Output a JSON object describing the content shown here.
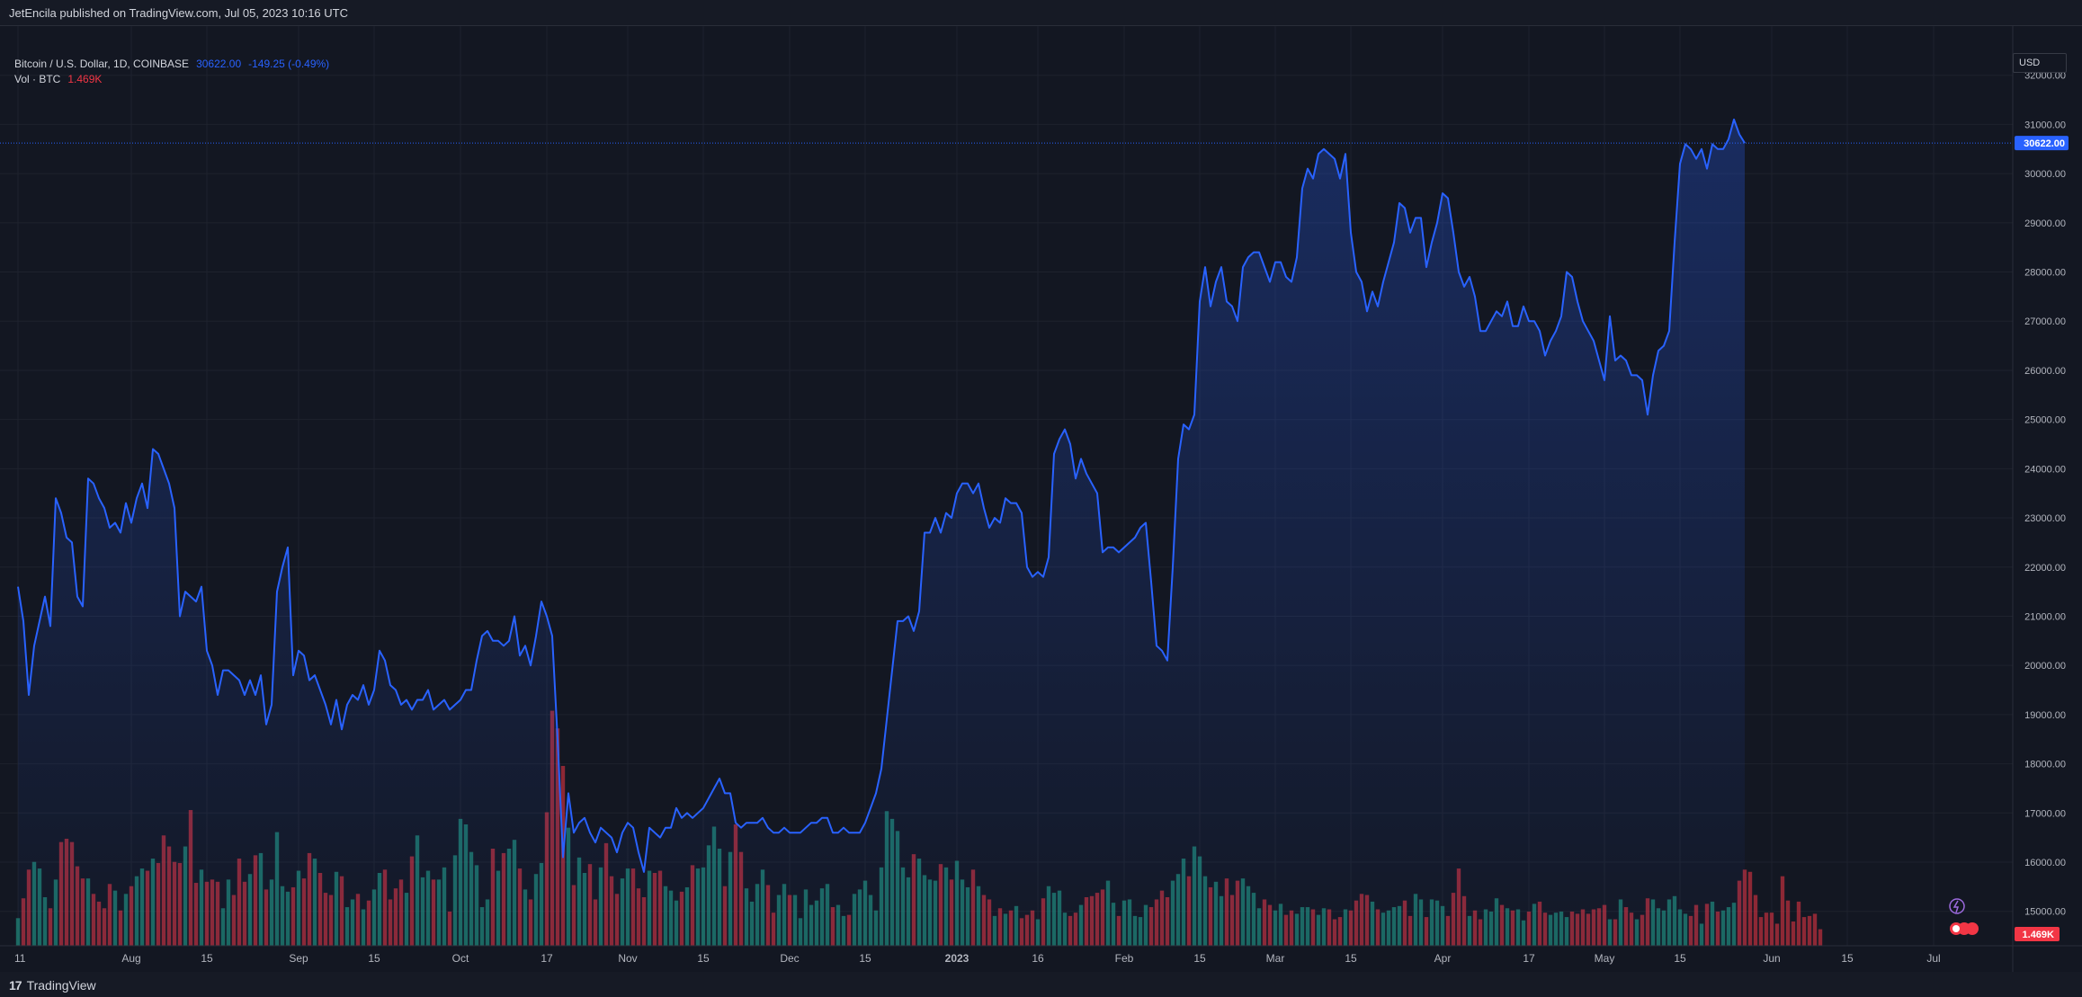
{
  "header": {
    "published_text": "JetEncila published on TradingView.com, Jul 05, 2023 10:16 UTC"
  },
  "legend": {
    "symbol_text": "Bitcoin / U.S. Dollar, 1D, COINBASE",
    "last_price": "30622.00",
    "change": "-149.25 (-0.49%)",
    "volume_label": "Vol · BTC",
    "volume_value": "1.469K"
  },
  "axis": {
    "currency": "USD",
    "last_price_tag": "30622.00",
    "volume_tag": "1.469K"
  },
  "footer": {
    "brand": "TradingView",
    "brand_mark": "17"
  },
  "colors": {
    "line": "#2962ff",
    "up_volume": "#22ab94",
    "down_volume": "#f23645",
    "background": "#131722",
    "grid": "#1e222d"
  },
  "chart_data": {
    "type": "area",
    "title": "Bitcoin / U.S. Dollar, 1D, COINBASE",
    "y_ticks": [
      "15000.00",
      "16000.00",
      "17000.00",
      "18000.00",
      "19000.00",
      "20000.00",
      "21000.00",
      "22000.00",
      "23000.00",
      "24000.00",
      "25000.00",
      "26000.00",
      "27000.00",
      "28000.00",
      "29000.00",
      "30000.00",
      "31000.00",
      "32000.00"
    ],
    "ylim": [
      14300,
      33000
    ],
    "x_ticks": [
      "11",
      "Aug",
      "15",
      "Sep",
      "15",
      "Oct",
      "17",
      "Nov",
      "15",
      "Dec",
      "15",
      "2023",
      "16",
      "Feb",
      "15",
      "Mar",
      "15",
      "Apr",
      "17",
      "May",
      "15",
      "Jun",
      "15",
      "Jul"
    ],
    "x_tick_days": [
      0,
      21,
      35,
      52,
      66,
      82,
      98,
      113,
      127,
      143,
      157,
      174,
      189,
      205,
      219,
      233,
      247,
      264,
      280,
      294,
      308,
      325,
      339,
      355
    ],
    "series": [
      {
        "name": "Bitcoin / U.S. Dollar",
        "start_date": "2022-07-11",
        "values": [
          21600,
          20900,
          19400,
          20400,
          20900,
          21400,
          20800,
          23400,
          23100,
          22600,
          22500,
          21400,
          21200,
          23800,
          23700,
          23400,
          23200,
          22800,
          22900,
          22700,
          23300,
          22900,
          23400,
          23700,
          23200,
          24400,
          24300,
          24000,
          23700,
          23200,
          21000,
          21500,
          21400,
          21300,
          21600,
          20300,
          20000,
          19400,
          19900,
          19900,
          19800,
          19700,
          19400,
          19700,
          19400,
          19800,
          18800,
          19200,
          21500,
          22000,
          22400,
          19800,
          20300,
          20200,
          19700,
          19800,
          19500,
          19200,
          18800,
          19300,
          18700,
          19200,
          19400,
          19300,
          19600,
          19200,
          19500,
          20300,
          20100,
          19600,
          19500,
          19200,
          19300,
          19100,
          19300,
          19300,
          19500,
          19100,
          19200,
          19300,
          19100,
          19200,
          19300,
          19500,
          19500,
          20100,
          20600,
          20700,
          20500,
          20500,
          20400,
          20500,
          21000,
          20200,
          20400,
          20000,
          20600,
          21300,
          21000,
          20600,
          18500,
          16100,
          17400,
          16600,
          16800,
          16900,
          16600,
          16400,
          16700,
          16600,
          16500,
          16200,
          16600,
          16800,
          16700,
          16200,
          15800,
          16700,
          16600,
          16500,
          16700,
          16700,
          17100,
          16900,
          17000,
          16900,
          17000,
          17100,
          17300,
          17500,
          17700,
          17400,
          17400,
          16800,
          16700,
          16800,
          16800,
          16800,
          16900,
          16700,
          16600,
          16600,
          16700,
          16600,
          16600,
          16600,
          16700,
          16800,
          16800,
          16900,
          16900,
          16600,
          16600,
          16700,
          16600,
          16600,
          16600,
          16800,
          17100,
          17400,
          17900,
          18900,
          19900,
          20900,
          20900,
          21000,
          20700,
          21100,
          22700,
          22700,
          23000,
          22700,
          23100,
          23000,
          23500,
          23700,
          23700,
          23500,
          23700,
          23200,
          22800,
          23000,
          22900,
          23400,
          23300,
          23300,
          23100,
          22000,
          21800,
          21900,
          21800,
          22200,
          24300,
          24600,
          24800,
          24500,
          23800,
          24200,
          23900,
          23700,
          23500,
          22300,
          22400,
          22400,
          22300,
          22400,
          22500,
          22600,
          22800,
          22900,
          21700,
          20400,
          20300,
          20100,
          22000,
          24200,
          24900,
          24800,
          25100,
          27400,
          28100,
          27300,
          27800,
          28100,
          27400,
          27300,
          27000,
          28100,
          28300,
          28400,
          28400,
          28100,
          27800,
          28200,
          28200,
          27900,
          27800,
          28300,
          29700,
          30100,
          29900,
          30400,
          30500,
          30400,
          30300,
          29900,
          30400,
          28800,
          28000,
          27800,
          27200,
          27600,
          27300,
          27800,
          28200,
          28600,
          29400,
          29300,
          28800,
          29100,
          29100,
          28100,
          28600,
          29000,
          29600,
          29500,
          28800,
          28000,
          27700,
          27900,
          27500,
          26800,
          26800,
          27000,
          27200,
          27100,
          27400,
          26900,
          26900,
          27300,
          27000,
          27000,
          26800,
          26300,
          26600,
          26800,
          27100,
          28000,
          27900,
          27400,
          27000,
          26800,
          26600,
          26200,
          25800,
          27100,
          26200,
          26300,
          26200,
          25900,
          25900,
          25800,
          25100,
          25900,
          26400,
          26500,
          26800,
          28600,
          30200,
          30600,
          30500,
          30300,
          30500,
          30100,
          30600,
          30500,
          30500,
          30700,
          31100,
          30800,
          30622
        ]
      },
      {
        "name": "Vol · BTC",
        "values": [
          2.5,
          4.3,
          6.9,
          7.6,
          7.0,
          4.4,
          3.4,
          6.0,
          9.4,
          9.7,
          9.4,
          7.2,
          6.1,
          6.1,
          4.7,
          4.0,
          3.4,
          5.6,
          5.0,
          3.2,
          4.7,
          5.4,
          6.3,
          7.0,
          6.8,
          7.9,
          7.5,
          10.0,
          9.0,
          7.6,
          7.5,
          9.0,
          12.3,
          5.7,
          6.9,
          5.8,
          6.0,
          5.8,
          3.4,
          6.0,
          4.6,
          7.9,
          5.8,
          6.5,
          8.2,
          8.4,
          5.1,
          6.0,
          10.3,
          5.4,
          4.9,
          5.3,
          6.8,
          6.1,
          8.4,
          7.9,
          6.6,
          4.8,
          4.6,
          6.7,
          6.3,
          3.5,
          4.2,
          4.7,
          3.3,
          4.1,
          5.1,
          6.6,
          6.9,
          4.2,
          5.2,
          6.0,
          4.8,
          8.1,
          10.0,
          6.2,
          6.8,
          6.0,
          6.0,
          7.1,
          3.1,
          8.2,
          11.5,
          11.0,
          8.5,
          7.3,
          3.5,
          4.2,
          8.8,
          6.8,
          8.4,
          8.8,
          9.6,
          7.0,
          5.1,
          4.2,
          6.5,
          7.5,
          12.1,
          21.3,
          19.7,
          16.3,
          10.7,
          5.5,
          8.0,
          6.6,
          7.4,
          4.2,
          7.1,
          9.3,
          6.3,
          4.7,
          6.1,
          7.0,
          7.0,
          5.2,
          4.4,
          6.8,
          6.6,
          6.8,
          5.4,
          5.0,
          4.1,
          4.9,
          5.3,
          7.3,
          7.0,
          7.1,
          9.1,
          10.8,
          8.8,
          5.4,
          8.5,
          11.0,
          8.5,
          5.2,
          4.0,
          5.6,
          6.9,
          5.5,
          3.0,
          4.6,
          5.6,
          4.6,
          4.6,
          2.5,
          5.1,
          3.7,
          4.1,
          5.2,
          5.6,
          3.5,
          3.7,
          2.7,
          2.8,
          4.7,
          5.1,
          5.9,
          4.6,
          3.2,
          7.1,
          12.2,
          11.5,
          10.4,
          7.1,
          6.2,
          8.3,
          7.9,
          6.4,
          6.0,
          5.9,
          7.4,
          7.1,
          6.0,
          7.7,
          6.0,
          5.3,
          6.9,
          5.4,
          4.6,
          4.2,
          2.7,
          3.4,
          2.9,
          3.2,
          3.6,
          2.5,
          2.8,
          3.2,
          2.4,
          4.3,
          5.4,
          4.8,
          5.0,
          3.0,
          2.7,
          3.0,
          3.7,
          4.4,
          4.5,
          4.8,
          5.1,
          5.9,
          3.9,
          2.7,
          4.1,
          4.2,
          2.7,
          2.6,
          3.7,
          3.5,
          4.2,
          5.0,
          4.4,
          5.9,
          6.5,
          7.9,
          6.3,
          9.0,
          8.1,
          6.3,
          5.3,
          5.8,
          4.5,
          6.1,
          4.6,
          5.9,
          6.1,
          5.4,
          4.8,
          3.4,
          4.2,
          3.7,
          3.2,
          3.8,
          2.8,
          3.2,
          2.9,
          3.5,
          3.5,
          3.3,
          2.8,
          3.4,
          3.3,
          2.4,
          2.6,
          3.3,
          3.2,
          4.1,
          4.7,
          4.6,
          4.0,
          3.3,
          3.0,
          3.2,
          3.5,
          3.6,
          4.1,
          2.7,
          4.7,
          4.2,
          2.6,
          4.2,
          4.1,
          3.6,
          2.7,
          4.8,
          7.0,
          4.5,
          2.7,
          3.2,
          2.4,
          3.3,
          3.1,
          4.3,
          3.7,
          3.4,
          3.2,
          3.3,
          2.3,
          3.1,
          3.8,
          4.0,
          3.0,
          2.8,
          3.0,
          3.1,
          2.6,
          3.1,
          2.9,
          3.3,
          2.9,
          3.3,
          3.4,
          3.7,
          2.4,
          2.4,
          4.2,
          3.5,
          3.0,
          2.4,
          2.8,
          4.3,
          4.2,
          3.4,
          3.2,
          4.2,
          4.5,
          3.3,
          2.9,
          2.7,
          3.7,
          2.0,
          3.8,
          4.0,
          3.1,
          3.2,
          3.5,
          3.9,
          5.9,
          6.9,
          6.7,
          4.6,
          2.6,
          3.0,
          3.0,
          2.0,
          6.3,
          4.1,
          2.2,
          4.0,
          2.6,
          2.7,
          2.9,
          1.5
        ]
      }
    ]
  }
}
